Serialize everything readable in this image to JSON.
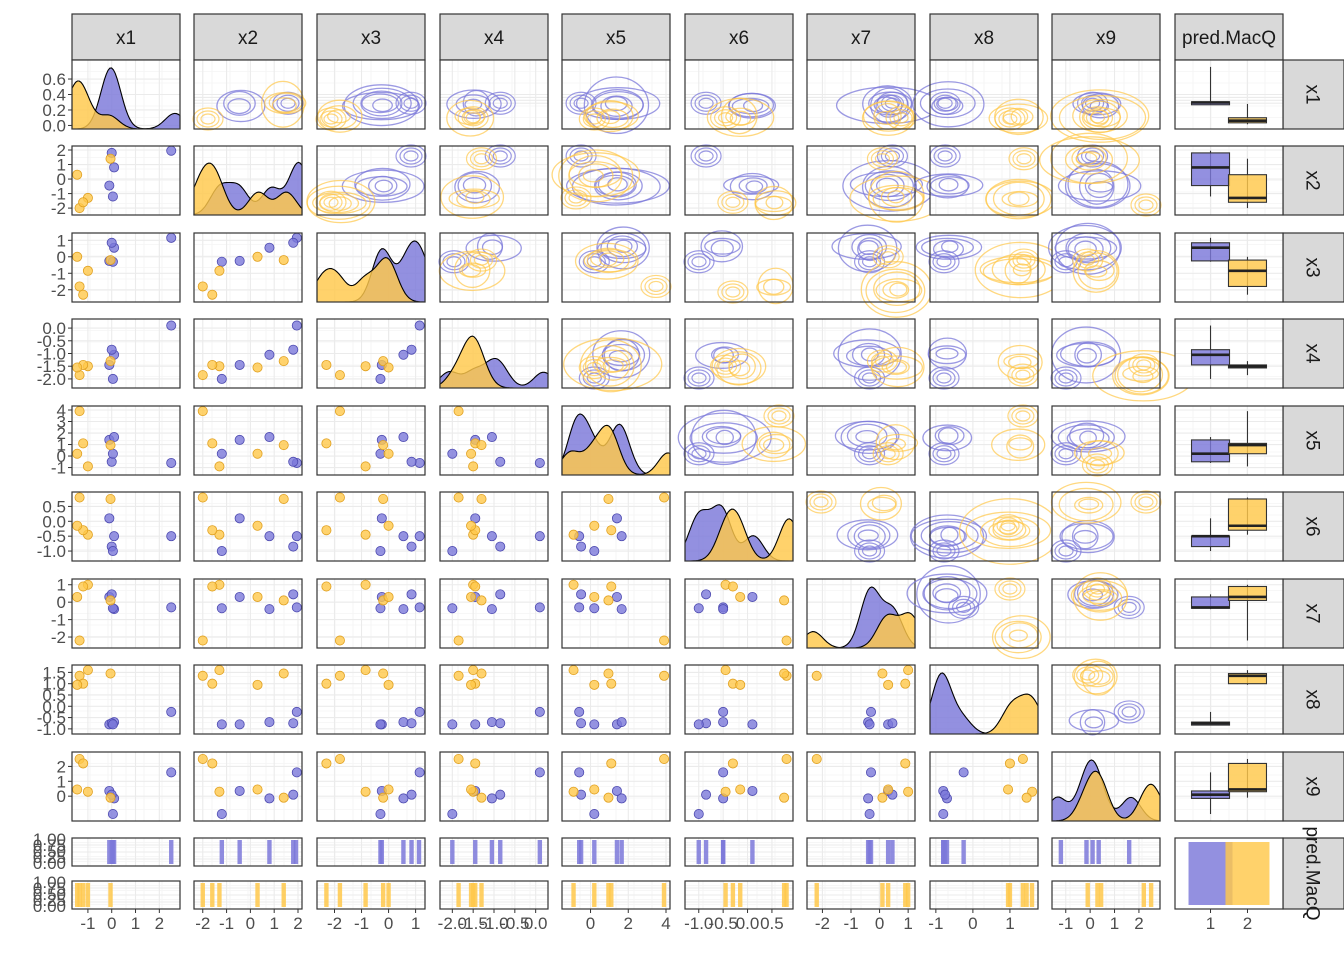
{
  "chart_data": {
    "type": "scatter",
    "title": "",
    "xlabel": "",
    "ylabel": "",
    "grid": true,
    "legend": "none",
    "variables": [
      "x1",
      "x2",
      "x3",
      "x4",
      "x5",
      "x6",
      "x7",
      "x8",
      "x9"
    ],
    "group_variable": "pred.MacQ",
    "column_strip_labels": [
      "x1",
      "x2",
      "x3",
      "x4",
      "x5",
      "x6",
      "x7",
      "x8",
      "x9",
      "pred.MacQ"
    ],
    "row_strip_labels": [
      "x1",
      "x2",
      "x3",
      "x4",
      "x5",
      "x6",
      "x7",
      "x8",
      "x9",
      "pred.MacQ"
    ],
    "colors": {
      "group_1": "#7B78D9",
      "group_2": "#FFC84A",
      "panel_border": "#333333",
      "grid": "#ebebeb",
      "strip": "#d9d9d9"
    },
    "axes": {
      "x1": {
        "range": [
          -1.5,
          2.7
        ],
        "ticks": [
          "-1",
          "0",
          "1",
          "2"
        ],
        "tick_values": [
          -1,
          0,
          1,
          2
        ]
      },
      "x2": {
        "range": [
          -2.2,
          2.0
        ],
        "ticks": [
          "-2",
          "-1",
          "0",
          "1",
          "2"
        ],
        "tick_values": [
          -2,
          -1,
          0,
          1,
          2
        ]
      },
      "x3": {
        "range": [
          -2.5,
          1.2
        ],
        "ticks": [
          "-2",
          "-1",
          "0",
          "1"
        ],
        "tick_values": [
          -2,
          -1,
          0,
          1
        ]
      },
      "x4": {
        "range": [
          -2.2,
          0.2
        ],
        "ticks": [
          "-2.0",
          "-1.5",
          "-1.0",
          "-0.5",
          "0.0"
        ],
        "tick_values": [
          -2,
          -1.5,
          -1,
          -0.5,
          0
        ]
      },
      "x5": {
        "range": [
          -1.3,
          4.0
        ],
        "ticks": [
          "0",
          "2",
          "4"
        ],
        "tick_values": [
          0,
          2,
          4
        ]
      },
      "x6": {
        "range": [
          -1.2,
          0.85
        ],
        "ticks": [
          "-1.0",
          "-0.5",
          "0.0",
          "0.5"
        ],
        "tick_values": [
          -1,
          -0.5,
          0,
          0.5
        ]
      },
      "x7": {
        "range": [
          -2.4,
          1.1
        ],
        "ticks": [
          "-2",
          "-1",
          "0",
          "1"
        ],
        "tick_values": [
          -2,
          -1,
          0,
          1
        ]
      },
      "x8": {
        "range": [
          -1.05,
          1.65
        ],
        "ticks": [
          "-1",
          "0",
          "1"
        ],
        "tick_values": [
          -1,
          0,
          1
        ]
      },
      "x9": {
        "range": [
          -1.4,
          2.7
        ],
        "ticks": [
          "-1",
          "0",
          "1",
          "2"
        ],
        "tick_values": [
          -1,
          0,
          1,
          2
        ]
      },
      "pred.MacQ": {
        "categories": [
          "1",
          "2"
        ]
      }
    },
    "row_tick_labels": {
      "x1": {
        "ticks": [
          "0.0",
          "0.2",
          "0.4",
          "0.6"
        ],
        "tick_values": [
          0,
          0.2,
          0.4,
          0.6
        ],
        "range": [
          -0.02,
          0.82
        ]
      },
      "x2": {
        "ticks": [
          "-2",
          "-1",
          "0",
          "1",
          "2"
        ],
        "tick_values": [
          -2,
          -1,
          0,
          1,
          2
        ]
      },
      "x3": {
        "ticks": [
          "-2",
          "-1",
          "0",
          "1"
        ],
        "tick_values": [
          -2,
          -1,
          0,
          1
        ]
      },
      "x4": {
        "ticks": [
          "-2.0",
          "-1.5",
          "-1.0",
          "-0.5",
          "0.0"
        ],
        "tick_values": [
          -2,
          -1.5,
          -1,
          -0.5,
          0
        ]
      },
      "x5": {
        "ticks": [
          "-1",
          "0",
          "1",
          "2",
          "3",
          "4"
        ],
        "tick_values": [
          -1,
          0,
          1,
          2,
          3,
          4
        ]
      },
      "x6": {
        "ticks": [
          "-1.0",
          "-0.5",
          "0.0",
          "0.5"
        ],
        "tick_values": [
          -1,
          -0.5,
          0,
          0.5
        ]
      },
      "x7": {
        "ticks": [
          "-2",
          "-1",
          "0",
          "1"
        ],
        "tick_values": [
          -2,
          -1,
          0,
          1
        ]
      },
      "x8": {
        "ticks": [
          "-1.0",
          "-0.5",
          "0.0",
          "0.5",
          "1.0",
          "1.5"
        ],
        "tick_values": [
          -1,
          -0.5,
          0,
          0.5,
          1,
          1.5
        ]
      },
      "x9": {
        "ticks": [
          "0",
          "1",
          "2"
        ],
        "tick_values": [
          0,
          1,
          2
        ]
      },
      "pred.MacQ": {
        "ticks": [
          "0.00",
          "0.25",
          "0.50",
          "0.75",
          "1.00"
        ],
        "tick_values": [
          0,
          0.25,
          0.5,
          0.75,
          1
        ]
      }
    },
    "series": [
      {
        "group": "1",
        "points": [
          {
            "x1": 2.5,
            "x2": 1.95,
            "x3": 1.15,
            "x4": 0.1,
            "x5": -0.6,
            "x6": -0.5,
            "x7": -0.3,
            "x8": -0.25,
            "x9": 1.6
          },
          {
            "x1": -0.1,
            "x2": -0.45,
            "x3": -0.25,
            "x4": -1.45,
            "x5": 1.4,
            "x6": 0.1,
            "x7": 0.3,
            "x8": -0.8,
            "x9": 0.35
          },
          {
            "x1": 0.1,
            "x2": 0.8,
            "x3": 0.55,
            "x4": -1.05,
            "x5": 1.65,
            "x6": -0.5,
            "x7": -0.4,
            "x8": -0.7,
            "x9": -0.15
          },
          {
            "x1": 0.0,
            "x2": 1.8,
            "x3": 0.85,
            "x4": -0.85,
            "x5": -0.5,
            "x6": -0.85,
            "x7": 0.45,
            "x8": -0.75,
            "x9": 0.1
          },
          {
            "x1": 0.05,
            "x2": -1.2,
            "x3": -0.3,
            "x4": -2.0,
            "x5": 0.2,
            "x6": -1.0,
            "x7": -0.35,
            "x8": -0.8,
            "x9": -1.2
          }
        ]
      },
      {
        "group": "2",
        "points": [
          {
            "x1": -1.35,
            "x2": -2.0,
            "x3": -1.8,
            "x4": -1.85,
            "x5": 3.9,
            "x6": 0.8,
            "x7": -2.2,
            "x8": 1.35,
            "x9": 2.5
          },
          {
            "x1": -1.0,
            "x2": -1.3,
            "x3": -0.85,
            "x4": -1.5,
            "x5": -0.9,
            "x6": -0.45,
            "x7": 1.0,
            "x8": 1.6,
            "x9": 0.3
          },
          {
            "x1": -1.2,
            "x2": -1.6,
            "x3": -2.3,
            "x4": -1.45,
            "x5": 1.1,
            "x6": -0.3,
            "x7": 0.9,
            "x8": 1.0,
            "x9": 2.2
          },
          {
            "x1": -0.05,
            "x2": 1.4,
            "x3": -0.2,
            "x4": -1.3,
            "x5": 0.95,
            "x6": 0.75,
            "x7": 0.1,
            "x8": 1.45,
            "x9": -0.1
          },
          {
            "x1": -1.45,
            "x2": 0.3,
            "x3": 0.0,
            "x4": -1.55,
            "x5": 0.2,
            "x6": -0.15,
            "x7": 0.3,
            "x8": 0.95,
            "x9": 0.45
          }
        ]
      }
    ]
  }
}
